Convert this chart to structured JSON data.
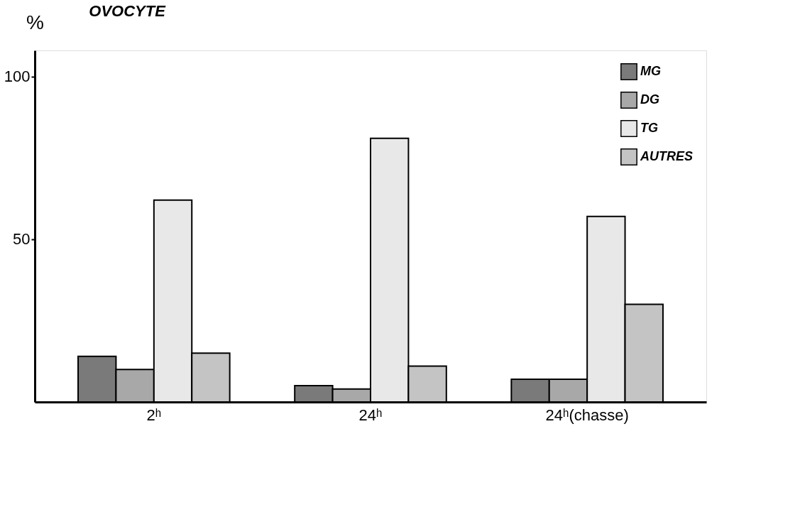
{
  "chart_data": {
    "type": "bar",
    "title": "OVOCYTE",
    "ylabel": "%",
    "categories": [
      "2ʰ",
      "24ʰ",
      "24ʰ(chasse)"
    ],
    "series": [
      {
        "name": "MG",
        "color": "#7a7a7a",
        "values": [
          14,
          5,
          7
        ]
      },
      {
        "name": "DG",
        "color": "#a8a8a8",
        "values": [
          10,
          4,
          7
        ]
      },
      {
        "name": "TG",
        "color": "#e8e8e8",
        "values": [
          62,
          81,
          57
        ]
      },
      {
        "name": "AUTRES",
        "color": "#c4c4c4",
        "values": [
          15,
          11,
          30
        ]
      }
    ],
    "ylim": [
      0,
      108
    ],
    "yticks": [
      50,
      100
    ],
    "grid": false,
    "legend": "top right"
  }
}
